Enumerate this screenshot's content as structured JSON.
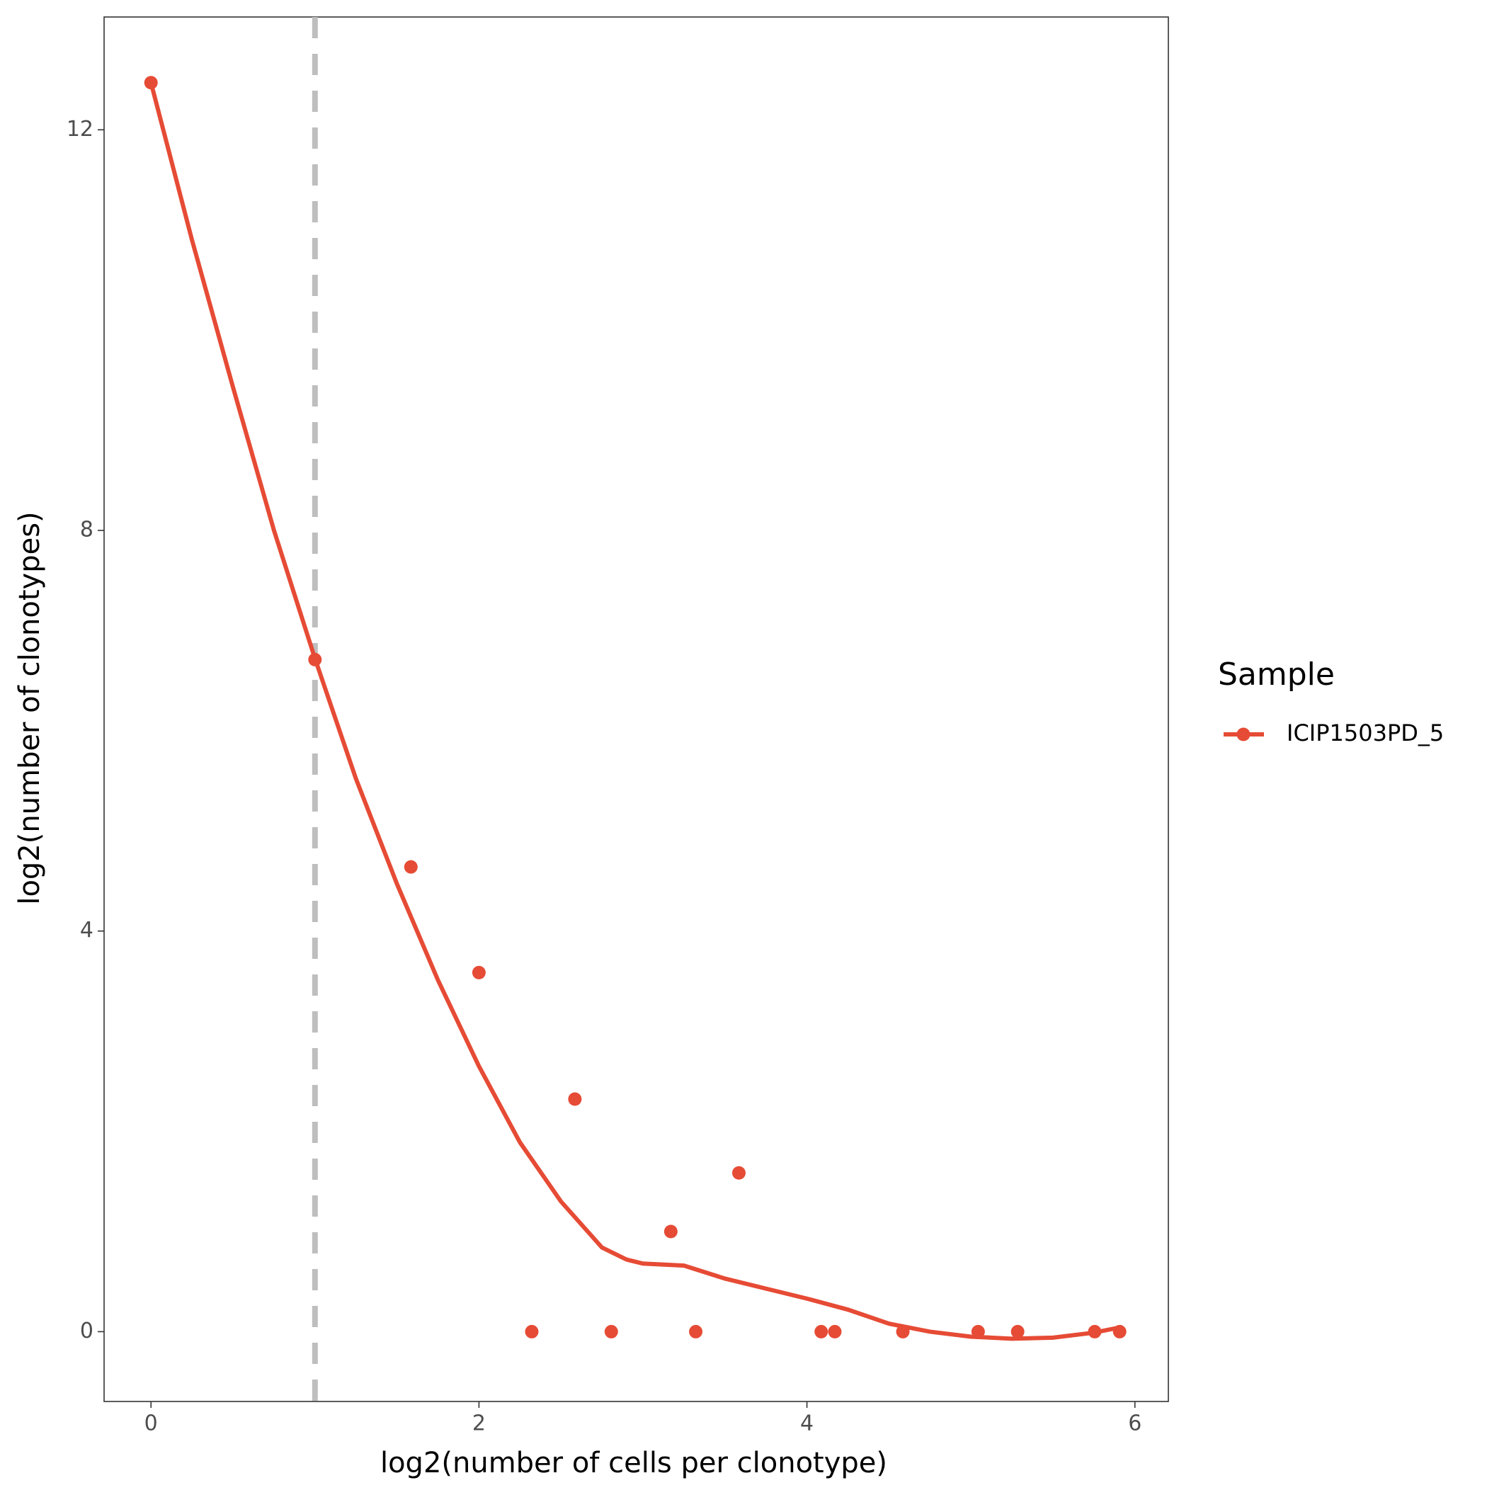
{
  "chart_data": {
    "type": "scatter",
    "x_label": "log2(number of cells per clonotype)",
    "y_label": "log2(number of clonotypes)",
    "legend_title": "Sample",
    "legend_position": "right",
    "series": [
      {
        "name": "ICIP1503PD_5",
        "color": "#E64B35",
        "x": [
          0,
          1,
          1.585,
          2,
          2.322,
          2.585,
          2.807,
          3.17,
          3.322,
          3.585,
          4.087,
          4.17,
          4.585,
          5.044,
          5.285,
          5.755,
          5.907
        ],
        "values": [
          12.47,
          6.71,
          4.64,
          3.585,
          0,
          2.322,
          0,
          1,
          0,
          1.585,
          0,
          0,
          0,
          0,
          0,
          0,
          0
        ]
      }
    ],
    "smooth": {
      "color": "#E64B35",
      "x": [
        0,
        0.25,
        0.5,
        0.75,
        1,
        1.25,
        1.5,
        1.75,
        2,
        2.25,
        2.5,
        2.75,
        2.9,
        3,
        3.25,
        3.5,
        3.75,
        4,
        4.25,
        4.5,
        4.75,
        5,
        5.25,
        5.5,
        5.75,
        5.9
      ],
      "values": [
        12.47,
        10.9,
        9.43,
        8.0,
        6.72,
        5.52,
        4.47,
        3.51,
        2.65,
        1.89,
        1.3,
        0.84,
        0.72,
        0.68,
        0.66,
        0.53,
        0.43,
        0.33,
        0.22,
        0.08,
        0,
        -0.05,
        -0.07,
        -0.06,
        -0.01,
        0.04
      ]
    },
    "vline": {
      "x": 1,
      "color": "#bebebe"
    },
    "xlim": [
      -0.286,
      6.204
    ],
    "xticks": [
      0,
      2,
      4,
      6
    ],
    "ylim": [
      -0.697,
      13.126
    ],
    "yticks": [
      0,
      4,
      8,
      12
    ],
    "grid": false
  }
}
